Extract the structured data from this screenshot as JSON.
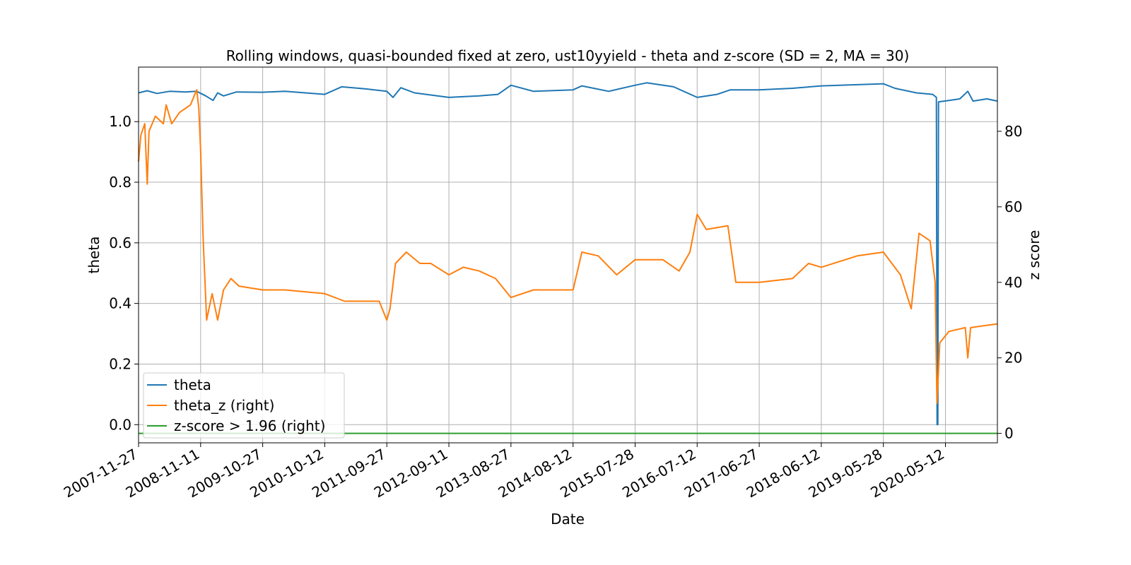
{
  "chart_data": {
    "type": "line",
    "title": "Rolling windows, quasi-bounded fixed at zero, ust10yyield - theta and z-score (SD = 2, MA = 30)",
    "xlabel": "Date",
    "ylabel": "theta",
    "y2label": "z score",
    "grid": true,
    "legend_position": "lower-left",
    "x_range": [
      "2007-11-27",
      "2021-03-01"
    ],
    "ylim": [
      -0.06,
      1.18
    ],
    "y2lim": [
      -2.5,
      97
    ],
    "x_ticks": [
      "2007-11-27",
      "2008-11-11",
      "2009-10-27",
      "2010-10-12",
      "2011-09-27",
      "2012-09-11",
      "2013-08-27",
      "2014-08-12",
      "2015-07-28",
      "2016-07-12",
      "2017-06-27",
      "2018-06-12",
      "2019-05-28",
      "2020-05-12"
    ],
    "y_ticks": [
      "0.0",
      "0.2",
      "0.4",
      "0.6",
      "0.8",
      "1.0"
    ],
    "y2_ticks": [
      "0",
      "20",
      "40",
      "60",
      "80"
    ],
    "series": [
      {
        "name": "theta",
        "axis": "left",
        "color": "#1f77b4",
        "points": [
          [
            "2007-11-27",
            1.095
          ],
          [
            "2008-01-15",
            1.102
          ],
          [
            "2008-03-10",
            1.093
          ],
          [
            "2008-05-20",
            1.1
          ],
          [
            "2008-08-15",
            1.098
          ],
          [
            "2008-10-20",
            1.1
          ],
          [
            "2008-12-10",
            1.085
          ],
          [
            "2009-01-20",
            1.07
          ],
          [
            "2009-02-15",
            1.095
          ],
          [
            "2009-03-20",
            1.085
          ],
          [
            "2009-06-01",
            1.098
          ],
          [
            "2009-10-27",
            1.097
          ],
          [
            "2010-03-01",
            1.1
          ],
          [
            "2010-10-12",
            1.09
          ],
          [
            "2011-01-15",
            1.115
          ],
          [
            "2011-06-01",
            1.108
          ],
          [
            "2011-09-27",
            1.1
          ],
          [
            "2011-11-01",
            1.08
          ],
          [
            "2011-12-15",
            1.112
          ],
          [
            "2012-03-01",
            1.095
          ],
          [
            "2012-09-11",
            1.08
          ],
          [
            "2013-03-01",
            1.085
          ],
          [
            "2013-06-15",
            1.09
          ],
          [
            "2013-08-27",
            1.12
          ],
          [
            "2014-01-01",
            1.1
          ],
          [
            "2014-08-12",
            1.105
          ],
          [
            "2014-10-01",
            1.118
          ],
          [
            "2015-03-01",
            1.1
          ],
          [
            "2015-07-28",
            1.12
          ],
          [
            "2015-10-01",
            1.128
          ],
          [
            "2016-03-01",
            1.115
          ],
          [
            "2016-07-12",
            1.08
          ],
          [
            "2016-11-01",
            1.09
          ],
          [
            "2017-01-15",
            1.105
          ],
          [
            "2017-06-27",
            1.105
          ],
          [
            "2018-01-01",
            1.11
          ],
          [
            "2018-06-12",
            1.118
          ],
          [
            "2019-05-28",
            1.125
          ],
          [
            "2019-08-01",
            1.11
          ],
          [
            "2019-12-01",
            1.095
          ],
          [
            "2020-03-01",
            1.09
          ],
          [
            "2020-03-22",
            1.08
          ],
          [
            "2020-03-26",
            0.0
          ],
          [
            "2020-03-30",
            0.0
          ],
          [
            "2020-04-03",
            1.065
          ],
          [
            "2020-06-01",
            1.07
          ],
          [
            "2020-08-01",
            1.075
          ],
          [
            "2020-09-15",
            1.1
          ],
          [
            "2020-10-15",
            1.068
          ],
          [
            "2021-01-01",
            1.075
          ],
          [
            "2021-03-01",
            1.068
          ]
        ]
      },
      {
        "name": "theta_z (right)",
        "axis": "right",
        "color": "#ff7f0e",
        "points": [
          [
            "2007-11-27",
            72
          ],
          [
            "2007-12-10",
            79
          ],
          [
            "2008-01-01",
            82
          ],
          [
            "2008-01-15",
            66
          ],
          [
            "2008-01-25",
            80
          ],
          [
            "2008-03-01",
            84
          ],
          [
            "2008-04-15",
            82
          ],
          [
            "2008-05-01",
            87
          ],
          [
            "2008-06-01",
            82
          ],
          [
            "2008-07-15",
            85
          ],
          [
            "2008-09-15",
            87
          ],
          [
            "2008-10-20",
            91
          ],
          [
            "2008-11-01",
            86
          ],
          [
            "2008-11-11",
            75
          ],
          [
            "2008-11-25",
            52
          ],
          [
            "2008-12-15",
            30
          ],
          [
            "2009-01-15",
            37
          ],
          [
            "2009-02-15",
            30
          ],
          [
            "2009-03-20",
            38
          ],
          [
            "2009-05-01",
            41
          ],
          [
            "2009-06-15",
            39
          ],
          [
            "2009-10-27",
            38
          ],
          [
            "2010-03-01",
            38
          ],
          [
            "2010-10-12",
            37
          ],
          [
            "2011-02-01",
            35
          ],
          [
            "2011-06-01",
            35
          ],
          [
            "2011-08-15",
            35
          ],
          [
            "2011-09-27",
            30
          ],
          [
            "2011-10-15",
            33
          ],
          [
            "2011-11-15",
            45
          ],
          [
            "2012-01-15",
            48
          ],
          [
            "2012-04-01",
            45
          ],
          [
            "2012-06-01",
            45
          ],
          [
            "2012-09-11",
            42
          ],
          [
            "2012-12-01",
            44
          ],
          [
            "2013-03-01",
            43
          ],
          [
            "2013-06-01",
            41
          ],
          [
            "2013-08-27",
            36
          ],
          [
            "2014-01-01",
            38
          ],
          [
            "2014-08-12",
            38
          ],
          [
            "2014-10-01",
            48
          ],
          [
            "2015-01-01",
            47
          ],
          [
            "2015-04-15",
            42
          ],
          [
            "2015-07-28",
            46
          ],
          [
            "2016-01-01",
            46
          ],
          [
            "2016-04-01",
            43
          ],
          [
            "2016-06-01",
            48
          ],
          [
            "2016-07-12",
            58
          ],
          [
            "2016-09-01",
            54
          ],
          [
            "2017-01-01",
            55
          ],
          [
            "2017-02-15",
            40
          ],
          [
            "2017-06-27",
            40
          ],
          [
            "2018-01-01",
            41
          ],
          [
            "2018-04-01",
            45
          ],
          [
            "2018-06-12",
            44
          ],
          [
            "2019-01-01",
            47
          ],
          [
            "2019-05-28",
            48
          ],
          [
            "2019-09-01",
            42
          ],
          [
            "2019-11-01",
            33
          ],
          [
            "2019-12-15",
            53
          ],
          [
            "2020-02-15",
            51
          ],
          [
            "2020-03-15",
            40
          ],
          [
            "2020-03-25",
            8
          ],
          [
            "2020-04-10",
            24
          ],
          [
            "2020-06-01",
            27
          ],
          [
            "2020-09-01",
            28
          ],
          [
            "2020-09-15",
            20
          ],
          [
            "2020-10-01",
            28
          ],
          [
            "2021-03-01",
            29
          ]
        ]
      },
      {
        "name": "z-score > 1.96 (right)",
        "axis": "right",
        "color": "#2ca02c",
        "points": [
          [
            "2007-11-27",
            0
          ],
          [
            "2021-03-01",
            0
          ]
        ]
      }
    ]
  }
}
